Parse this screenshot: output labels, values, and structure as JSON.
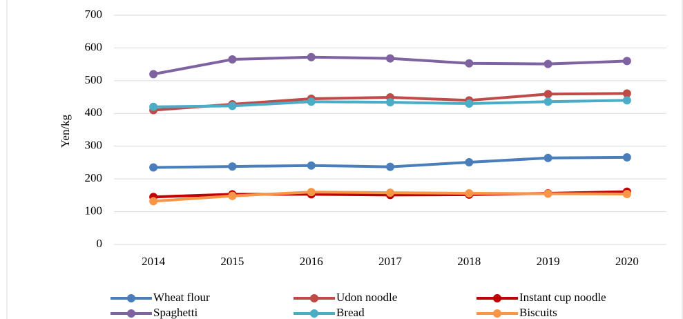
{
  "chart_data": {
    "type": "line",
    "y_label": "Yen/kg",
    "categories": [
      "2014",
      "2015",
      "2016",
      "2017",
      "2018",
      "2019",
      "2020"
    ],
    "series": [
      {
        "name": "Wheat flour",
        "color": "#4a7ebb",
        "values": [
          235,
          238,
          241,
          237,
          251,
          264,
          266
        ]
      },
      {
        "name": "Udon noodle",
        "color": "#be4b48",
        "values": [
          410,
          428,
          445,
          449,
          440,
          459,
          461
        ]
      },
      {
        "name": "Instant cup noodle",
        "color": "#c00000",
        "values": [
          145,
          153,
          153,
          151,
          152,
          156,
          161
        ]
      },
      {
        "name": "Spaghetti",
        "color": "#7f63a1",
        "values": [
          520,
          565,
          572,
          568,
          553,
          551,
          560
        ]
      },
      {
        "name": "Bread",
        "color": "#4bacc6",
        "values": [
          420,
          423,
          436,
          434,
          430,
          436,
          440
        ]
      },
      {
        "name": "Biscuits",
        "color": "#f79646",
        "values": [
          132,
          148,
          160,
          158,
          156,
          155,
          154
        ]
      }
    ],
    "ylim": [
      0,
      700
    ],
    "yticks": [
      0,
      100,
      200,
      300,
      400,
      500,
      600,
      700
    ],
    "grid": true
  }
}
